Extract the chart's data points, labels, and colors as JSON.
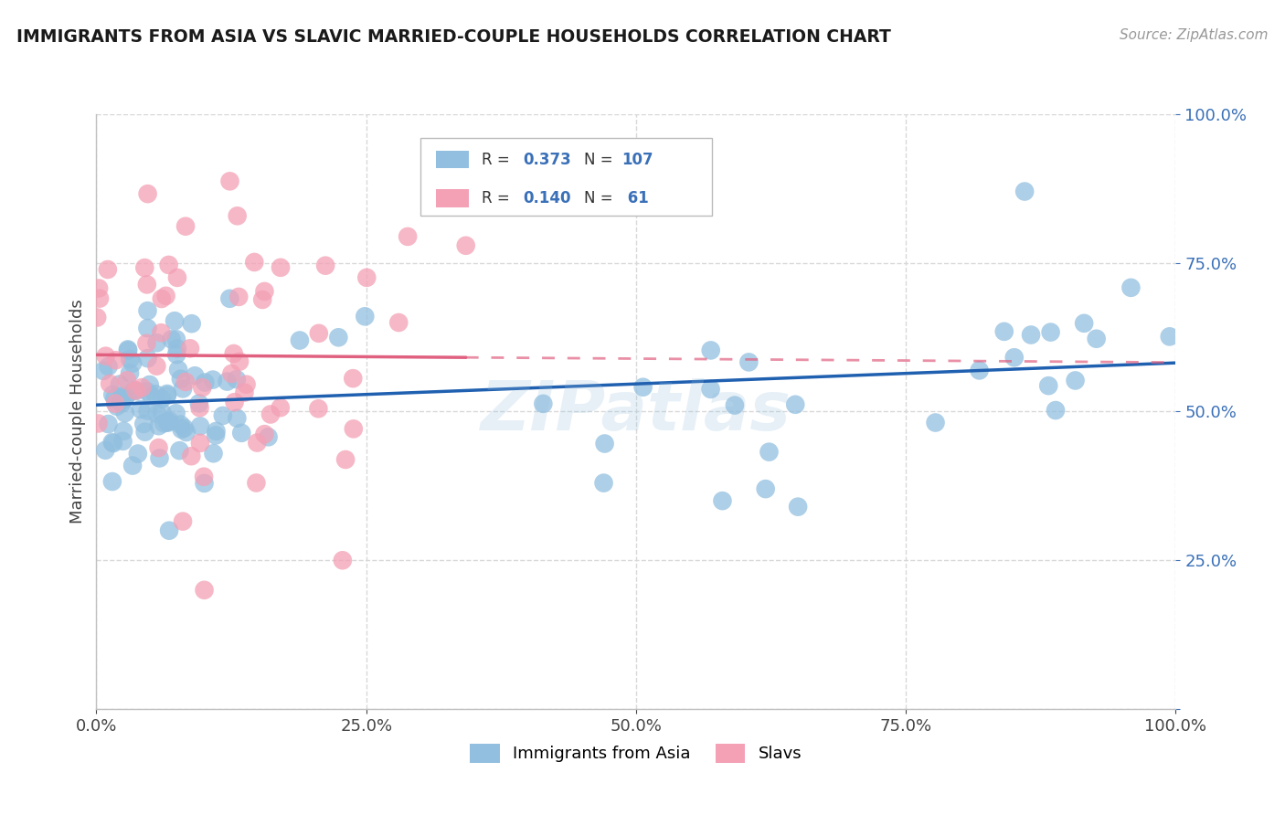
{
  "title": "IMMIGRANTS FROM ASIA VS SLAVIC MARRIED-COUPLE HOUSEHOLDS CORRELATION CHART",
  "source": "Source: ZipAtlas.com",
  "ylabel": "Married-couple Households",
  "xlim": [
    0.0,
    1.0
  ],
  "ylim": [
    0.0,
    1.0
  ],
  "legend1_label": "Immigrants from Asia",
  "legend2_label": "Slavs",
  "R_asia": 0.373,
  "N_asia": 107,
  "R_slavs": 0.14,
  "N_slavs": 61,
  "color_asia": "#92bfdf",
  "color_slavs": "#f4a0b5",
  "trendline_asia_color": "#2060b0",
  "trendline_slavs_color": "#e06080",
  "watermark": "ZIPatlas",
  "background_color": "#ffffff"
}
